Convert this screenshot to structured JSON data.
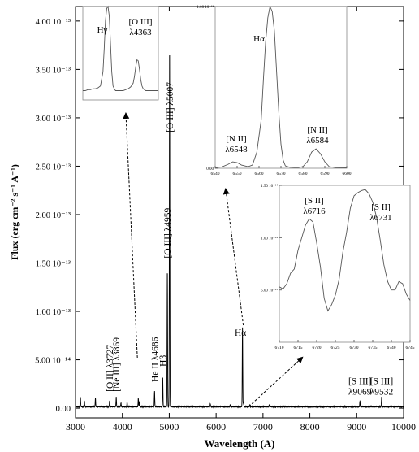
{
  "chart_data": [
    {
      "type": "line",
      "role": "main",
      "xlabel": "Wavelength (A)",
      "ylabel": "Flux (erg cm⁻² s⁻¹ A⁻¹)",
      "xlim": [
        3000,
        10000
      ],
      "ylim": [
        -1e-14,
        4.15e-13
      ],
      "x_ticks": [
        3000,
        4000,
        5000,
        6000,
        7000,
        8000,
        9000,
        10000
      ],
      "y_ticks": [
        {
          "value": 0,
          "label": "0.00"
        },
        {
          "value": 5e-14,
          "label": "5.00 10⁻¹⁴"
        },
        {
          "value": 1e-13,
          "label": "1.00 10⁻¹³"
        },
        {
          "value": 1.5e-13,
          "label": "1.50 10⁻¹³"
        },
        {
          "value": 2e-13,
          "label": "2.00 10⁻¹³"
        },
        {
          "value": 2.5e-13,
          "label": "2.50 10⁻¹³"
        },
        {
          "value": 3e-13,
          "label": "3.00 10⁻¹³"
        },
        {
          "value": 3.5e-13,
          "label": "3.50 10⁻¹³"
        },
        {
          "value": 4e-13,
          "label": "4.00 10⁻¹³"
        }
      ],
      "continuum": 1.5e-15,
      "emission_lines": [
        {
          "x": 3105,
          "peak": 1e-14
        },
        {
          "x": 3190,
          "peak": 6e-15
        },
        {
          "x": 3425,
          "peak": 9e-15
        },
        {
          "x": 3727,
          "peak": 6e-15
        },
        {
          "x": 3869,
          "peak": 1e-14
        },
        {
          "x": 3970,
          "peak": 4e-15
        },
        {
          "x": 4101,
          "peak": 5e-15
        },
        {
          "x": 4340,
          "peak": 9e-15
        },
        {
          "x": 4363,
          "peak": 5e-15
        },
        {
          "x": 4686,
          "peak": 1.6e-14
        },
        {
          "x": 4861,
          "peak": 3e-14
        },
        {
          "x": 4959,
          "peak": 1.4e-13
        },
        {
          "x": 5007,
          "peak": 3.7e-13
        },
        {
          "x": 5876,
          "peak": 3e-15
        },
        {
          "x": 6300,
          "peak": 2e-15
        },
        {
          "x": 6563,
          "peak": 8.3e-14
        },
        {
          "x": 6584,
          "peak": 5e-15
        },
        {
          "x": 6720,
          "peak": 2e-15
        },
        {
          "x": 7135,
          "peak": 2e-15
        },
        {
          "x": 9069,
          "peak": 6e-15
        },
        {
          "x": 9532,
          "peak": 1e-14
        }
      ],
      "annotations": [
        {
          "label": "[O II] λ3727",
          "x": 3727,
          "y": 1.7e-14
        },
        {
          "label": "[Ne III] λ3869",
          "x": 3869,
          "y": 1.7e-14
        },
        {
          "label": "He II λ4686",
          "x": 4686,
          "y": 2.7e-14
        },
        {
          "label": "Hβ",
          "x": 4861,
          "y": 4.3e-14
        },
        {
          "label": "[O III] λ4959",
          "x": 4959,
          "y": 1.55e-13
        },
        {
          "label": "[O III] λ5007",
          "x": 5007,
          "y": 2.85e-13
        },
        {
          "label": "Hα",
          "x": 6520,
          "y": 7.5e-14
        },
        {
          "label": "[S III]",
          "x": 9069,
          "y": 2.5e-14
        },
        {
          "label": "λ9069",
          "x": 9069,
          "y": 1.4e-14
        },
        {
          "label": "[S III]",
          "x": 9532,
          "y": 2.5e-14
        },
        {
          "label": "λ9532",
          "x": 9532,
          "y": 1.4e-14
        }
      ]
    },
    {
      "type": "line",
      "role": "inset-hgamma",
      "xlim": [
        4320,
        4380
      ],
      "ylim": [
        0,
        1
      ],
      "series_x": [
        4320,
        4322,
        4324,
        4326,
        4328,
        4330,
        4332,
        4334,
        4336,
        4337,
        4338,
        4339,
        4340,
        4341,
        4342,
        4343,
        4344,
        4345,
        4346,
        4348,
        4350,
        4352,
        4354,
        4356,
        4358,
        4360,
        4361,
        4362,
        4363,
        4364,
        4365,
        4366,
        4367,
        4368,
        4370,
        4372,
        4374,
        4376,
        4378,
        4380
      ],
      "series_y": [
        0.1,
        0.1,
        0.11,
        0.11,
        0.12,
        0.12,
        0.13,
        0.15,
        0.3,
        0.55,
        0.85,
        0.98,
        1.0,
        0.9,
        0.6,
        0.3,
        0.15,
        0.12,
        0.1,
        0.1,
        0.1,
        0.1,
        0.11,
        0.12,
        0.14,
        0.18,
        0.25,
        0.35,
        0.43,
        0.42,
        0.33,
        0.22,
        0.15,
        0.12,
        0.1,
        0.1,
        0.1,
        0.1,
        0.1,
        0.1
      ],
      "labels": [
        "Hγ",
        "[O III]",
        "λ4363"
      ]
    },
    {
      "type": "line",
      "role": "inset-halpha",
      "xlim": [
        6540,
        6600
      ],
      "x_ticks": [
        6540,
        6550,
        6560,
        6570,
        6580,
        6590,
        6600
      ],
      "ylim": [
        0,
        1e-13
      ],
      "y_ticks": [
        {
          "value": 0,
          "label": "0.00"
        },
        {
          "value": 1e-13,
          "label": "1.00 10⁻¹³"
        }
      ],
      "series_x": [
        6540,
        6543,
        6546,
        6548,
        6550,
        6552,
        6555,
        6557,
        6559,
        6561,
        6562,
        6563,
        6564,
        6565,
        6566,
        6567,
        6568,
        6569,
        6570,
        6571,
        6572,
        6574,
        6576,
        6578,
        6580,
        6582,
        6584,
        6586,
        6588,
        6590,
        6592,
        6595,
        6600
      ],
      "series_y": [
        4e-16,
        8e-16,
        2.5e-15,
        4e-15,
        3.5e-15,
        2e-15,
        1e-15,
        2e-15,
        1e-14,
        3e-14,
        5.5e-14,
        7.8e-14,
        9.3e-14,
        1e-13,
        9.7e-14,
        8.5e-14,
        6e-14,
        3.5e-14,
        1.5e-14,
        5e-15,
        1.5e-15,
        6e-16,
        5e-16,
        5e-16,
        1e-15,
        4e-15,
        1e-14,
        1.2e-14,
        9e-15,
        4e-15,
        1e-15,
        4e-16,
        3e-16
      ],
      "labels": [
        "Hα",
        "[N II]",
        "λ6548",
        "[N II]",
        "λ6584"
      ]
    },
    {
      "type": "line",
      "role": "inset-sii",
      "xlim": [
        6710,
        6745
      ],
      "x_ticks": [
        6710,
        6715,
        6720,
        6725,
        6730,
        6735,
        6740,
        6745
      ],
      "ylim": [
        0,
        1.5e-14
      ],
      "y_ticks": [
        {
          "value": 5e-15,
          "label": "5.00 10⁻¹⁵"
        },
        {
          "value": 1e-14,
          "label": "1.00 10⁻¹⁴"
        },
        {
          "value": 1.5e-14,
          "label": "1.50 10⁻¹⁴"
        }
      ],
      "series_x": [
        6710,
        6711,
        6712,
        6713,
        6714,
        6715,
        6716,
        6717,
        6718,
        6719,
        6720,
        6721,
        6722,
        6723,
        6724,
        6725,
        6726,
        6727,
        6728,
        6729,
        6730,
        6731,
        6732,
        6733,
        6734,
        6735,
        6736,
        6737,
        6738,
        6739,
        6740,
        6741,
        6742,
        6743,
        6744,
        6745
      ],
      "series_y": [
        5.3e-15,
        5.1e-15,
        5.6e-15,
        6.6e-15,
        7e-15,
        8.8e-15,
        1e-14,
        1.12e-14,
        1.18e-14,
        1.15e-14,
        9.5e-15,
        7.2e-15,
        4.2e-15,
        3e-15,
        3.6e-15,
        4.5e-15,
        6e-15,
        8.6e-15,
        1.05e-14,
        1.28e-14,
        1.4e-14,
        1.43e-14,
        1.45e-14,
        1.46e-14,
        1.42e-14,
        1.34e-14,
        1.2e-14,
        9.8e-15,
        7.4e-15,
        5.8e-15,
        5e-15,
        5e-15,
        5.8e-15,
        5.6e-15,
        4.6e-15,
        4e-15
      ],
      "labels": [
        "[S II]",
        "λ6716",
        "[S II]",
        "λ6731"
      ]
    }
  ]
}
